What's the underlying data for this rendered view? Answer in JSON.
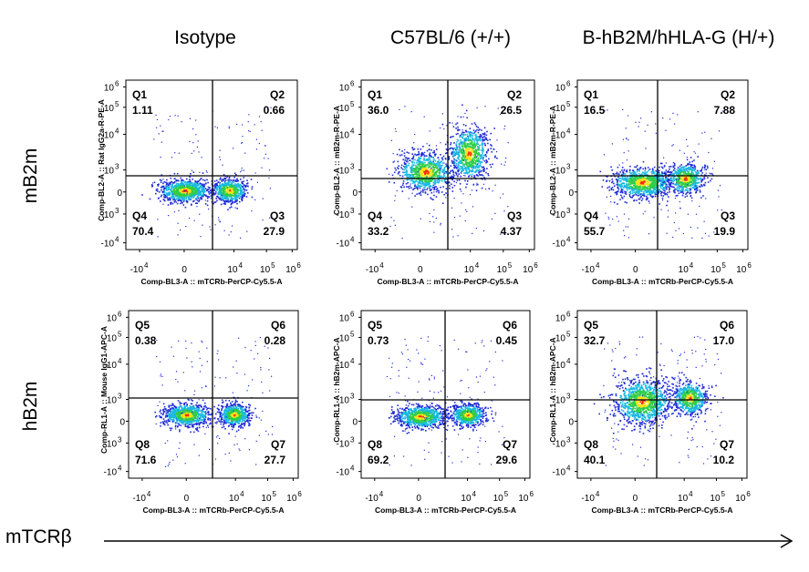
{
  "columns": [
    "Isotype",
    "C57BL/6 (+/+)",
    "B-hB2M/hHLA-G (H/+)"
  ],
  "rows": [
    "mB2m",
    "hB2m"
  ],
  "x_axis_caption": "mTCRβ",
  "colors": {
    "line": "#000000",
    "low": "#1f2bd6",
    "mid": "#2ecc4a",
    "high": "#ff2a00"
  },
  "chart_data": [
    {
      "type": "scatter",
      "panel": "mB2m-Isotype",
      "xlabel": "Comp-BL3-A :: mTCRb-PerCP-Cy5.5-A",
      "ylabel": "Comp-BL2-A :: Rat IgG2a-R-PE-A",
      "x_ticks": [
        "-10^4",
        "0",
        "10^4",
        "10^5",
        "10^6"
      ],
      "y_ticks": [
        "10^6",
        "10^5",
        "10^4",
        "10^3",
        "0",
        "-10^3",
        "-10^4"
      ],
      "quadrants": [
        {
          "name": "Q1",
          "value": "1.11"
        },
        {
          "name": "Q2",
          "value": "0.66"
        },
        {
          "name": "Q3",
          "value": "27.9"
        },
        {
          "name": "Q4",
          "value": "70.4"
        }
      ]
    },
    {
      "type": "scatter",
      "panel": "mB2m-C57BL/6",
      "xlabel": "Comp-BL3-A :: mTCRb-PerCP-Cy5.5-A",
      "ylabel": "Comp-BL2-A :: mB2m-R-PE-A",
      "x_ticks": [
        "-10^4",
        "0",
        "10^4",
        "10^5",
        "10^6"
      ],
      "y_ticks": [
        "10^6",
        "10^5",
        "10^4",
        "10^3",
        "0",
        "-10^3",
        "-10^4"
      ],
      "quadrants": [
        {
          "name": "Q1",
          "value": "36.0"
        },
        {
          "name": "Q2",
          "value": "26.5"
        },
        {
          "name": "Q3",
          "value": "4.37"
        },
        {
          "name": "Q4",
          "value": "33.2"
        }
      ]
    },
    {
      "type": "scatter",
      "panel": "mB2m-B-hB2M/hHLA-G",
      "xlabel": "Comp-BL3-A :: mTCRb-PerCP-Cy5.5-A",
      "ylabel": "Comp-BL2-A :: mB2m-R-PE-A",
      "x_ticks": [
        "-10^4",
        "0",
        "10^4",
        "10^5",
        "10^6"
      ],
      "y_ticks": [
        "10^6",
        "10^5",
        "10^4",
        "10^3",
        "0",
        "-10^3",
        "-10^4"
      ],
      "quadrants": [
        {
          "name": "Q1",
          "value": "16.5"
        },
        {
          "name": "Q2",
          "value": "7.88"
        },
        {
          "name": "Q3",
          "value": "19.9"
        },
        {
          "name": "Q4",
          "value": "55.7"
        }
      ]
    },
    {
      "type": "scatter",
      "panel": "hB2m-Isotype",
      "xlabel": "Comp-BL3-A :: mTCRb-PerCP-Cy5.5-A",
      "ylabel": "Comp-RL1-A :: Mouse IgG1-APC-A",
      "x_ticks": [
        "-10^4",
        "0",
        "10^4",
        "10^5",
        "10^6"
      ],
      "y_ticks": [
        "10^6",
        "10^5",
        "10^4",
        "10^3",
        "0",
        "-10^3",
        "-10^4"
      ],
      "quadrants": [
        {
          "name": "Q5",
          "value": "0.38"
        },
        {
          "name": "Q6",
          "value": "0.28"
        },
        {
          "name": "Q7",
          "value": "27.7"
        },
        {
          "name": "Q8",
          "value": "71.6"
        }
      ]
    },
    {
      "type": "scatter",
      "panel": "hB2m-C57BL/6",
      "xlabel": "Comp-BL3-A :: mTCRb-PerCP-Cy5.5-A",
      "ylabel": "Comp-RL1-A :: hB2m-APC-A",
      "x_ticks": [
        "-10^4",
        "0",
        "10^4",
        "10^5",
        "10^6"
      ],
      "y_ticks": [
        "10^6",
        "10^5",
        "10^4",
        "10^3",
        "0",
        "-10^3",
        "-10^4"
      ],
      "quadrants": [
        {
          "name": "Q5",
          "value": "0.73"
        },
        {
          "name": "Q6",
          "value": "0.45"
        },
        {
          "name": "Q7",
          "value": "29.6"
        },
        {
          "name": "Q8",
          "value": "69.2"
        }
      ]
    },
    {
      "type": "scatter",
      "panel": "hB2m-B-hB2M/hHLA-G",
      "xlabel": "Comp-BL3-A :: mTCRb-PerCP-Cy5.5-A",
      "ylabel": "Comp-RL1-A :: hB2m-APC-A",
      "x_ticks": [
        "-10^4",
        "0",
        "10^4",
        "10^5",
        "10^6"
      ],
      "y_ticks": [
        "10^6",
        "10^5",
        "10^4",
        "10^3",
        "0",
        "-10^3",
        "-10^4"
      ],
      "quadrants": [
        {
          "name": "Q5",
          "value": "32.7"
        },
        {
          "name": "Q6",
          "value": "17.0"
        },
        {
          "name": "Q7",
          "value": "10.2"
        },
        {
          "name": "Q8",
          "value": "40.1"
        }
      ]
    }
  ]
}
